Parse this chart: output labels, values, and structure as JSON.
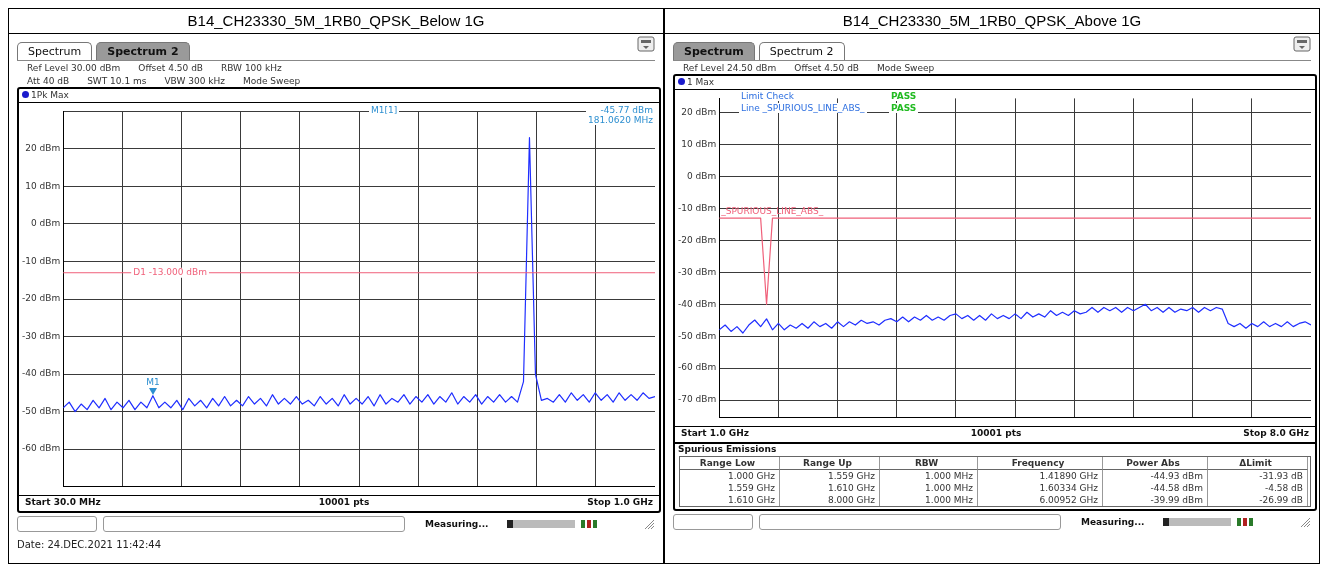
{
  "chart_data": [
    {
      "type": "line",
      "title": "B14_CH23330_5M_1RB0_QPSK_Below 1G",
      "annotations": [
        "Spectrum",
        "Spectrum 2",
        "Ref Level 30.00 dBm",
        "Offset 4.50 dB",
        "RBW 100 kHz",
        "Att 40 dB",
        "SWT 10.1 ms",
        "VBW 300 kHz",
        "Mode Sweep",
        "1Pk Max",
        "M1[1]",
        "-45.77 dBm",
        "181.0620 MHz",
        {
          "text": "M1",
          "y": -45.77
        },
        "Start 30.0 MHz",
        "10001 pts",
        "Stop 1.0 GHz",
        "Measuring...",
        "Date: 24.DEC.2021 11:42:44"
      ],
      "categories": [
        null,
        null,
        null,
        null,
        null,
        null,
        null,
        null,
        null,
        null,
        null,
        null,
        null,
        null,
        null,
        null,
        null,
        null,
        null,
        null,
        null,
        null,
        null,
        null,
        null,
        null,
        null,
        null,
        null,
        null,
        null,
        null,
        null,
        null,
        null,
        null,
        null,
        null,
        null,
        null,
        null,
        null,
        null,
        null,
        null,
        null,
        null,
        null,
        null,
        null,
        null,
        null,
        null,
        null,
        null,
        null,
        null,
        null,
        null,
        null,
        null,
        null,
        null,
        null,
        null,
        null,
        null,
        null,
        null,
        null,
        null,
        null,
        null,
        null,
        null,
        null,
        null,
        null,
        null,
        null,
        null,
        null,
        null,
        null,
        null,
        null,
        null,
        null,
        null,
        null,
        null,
        null,
        null,
        null,
        null,
        null,
        null,
        null,
        null,
        null
      ],
      "series": [
        {
          "color": "#1f2eff",
          "values": [
            -49,
            -47.5,
            -50,
            -48,
            -49.5,
            -47,
            -49,
            -46.5,
            -49.5,
            -47.5,
            -49,
            -47,
            -49.5,
            -47.5,
            -49,
            -45.77,
            -49,
            -47.5,
            -49,
            -47,
            -49.5,
            -46.5,
            -48.5,
            -47,
            -49,
            -46.5,
            -48.5,
            -46,
            -48.5,
            -47,
            -48.5,
            -46,
            -48,
            -46.5,
            -48.5,
            -45.5,
            -48,
            -46.5,
            -48,
            -46,
            -48,
            -47,
            -48.5,
            -46,
            -48,
            -46.5,
            -48.5,
            -45.5,
            -48,
            -46.5,
            -48,
            -46,
            -48.5,
            -45.5,
            -48,
            -46.5,
            -47.5,
            -45.5,
            -48,
            -46,
            -47.5,
            -45.5,
            -48,
            -46,
            -47.5,
            -45,
            -48,
            -46,
            -47.5,
            -45.5,
            -48,
            -46,
            -47.5,
            -45.5,
            -47.5,
            -46,
            -47.5,
            -42,
            23,
            -40,
            -47,
            -46.5,
            -47.5,
            -45.5,
            -47.5,
            -45,
            -47,
            -45.5,
            -47.5,
            -45,
            -47,
            -45.5,
            -47.5,
            -45,
            -47,
            -45.5,
            -47,
            -45,
            -46.5,
            -46
          ]
        }
      ],
      "ylim": [
        -70,
        30
      ],
      "yticks": [
        {
          "value": -70,
          "label": null
        },
        {
          "value": -60,
          "label": "-60 dBm"
        },
        {
          "value": -50,
          "label": "-50 dBm"
        },
        {
          "value": -40,
          "label": "-40 dBm"
        },
        {
          "value": -30,
          "label": "-30 dBm"
        },
        {
          "value": -20,
          "label": "-20 dBm"
        },
        {
          "value": -10,
          "label": "-10 dBm"
        },
        {
          "value": 0,
          "label": "0 dBm"
        },
        {
          "value": 10,
          "label": "10 dBm"
        },
        {
          "value": 20,
          "label": "20 dBm"
        },
        {
          "value": 30,
          "label": null
        }
      ],
      "grid": true,
      "tick_labels": "y",
      "ref_lines": [
        {
          "axis": "y",
          "value": -13,
          "label": "D1 -13.000 dBm",
          "color": "#f0607a"
        }
      ]
    },
    {
      "type": "line",
      "title": "B14_CH23330_5M_1RB0_QPSK_Above 1G",
      "annotations": [
        "Spectrum",
        "Spectrum 2",
        "Ref Level 24.50 dBm",
        "Offset 4.50 dB",
        "Mode Sweep",
        "1 Max",
        "Limit Check",
        "PASS",
        "Line _SPURIOUS_LINE_ABS_",
        "PASS",
        "Start 1.0 GHz",
        "10001 pts",
        "Stop 8.0 GHz",
        "Spurious Emissions",
        "Range Low",
        "Range Up",
        "RBW",
        "Frequency",
        "Power Abs",
        "ΔLimit",
        "1.000 GHz",
        "1.559 GHz",
        "1.000 MHz",
        "1.41890 GHz",
        "-44.93 dBm",
        "-31.93 dB",
        "1.559 GHz",
        "1.610 GHz",
        "1.000 MHz",
        "1.60334 GHz",
        "-44.58 dBm",
        "-4.58 dB",
        "1.610 GHz",
        "8.000 GHz",
        "1.000 MHz",
        "6.00952 GHz",
        "-39.99 dBm",
        "-26.99 dB",
        "Measuring..."
      ],
      "categories": [
        null,
        null,
        null,
        null,
        null,
        null,
        null,
        null,
        null,
        null,
        null,
        null,
        null,
        null,
        null,
        null,
        null,
        null,
        null,
        null,
        null,
        null,
        null,
        null,
        null,
        null,
        null,
        null,
        null,
        null,
        null,
        null,
        null,
        null,
        null,
        null,
        null,
        null,
        null,
        null,
        null,
        null,
        null,
        null,
        null,
        null,
        null,
        null,
        null,
        null,
        null,
        null,
        null,
        null,
        null,
        null,
        null,
        null,
        null,
        null,
        null,
        null,
        null,
        null,
        null,
        null,
        null,
        null,
        null,
        null,
        null,
        null,
        null,
        null,
        null,
        null,
        null,
        null,
        null,
        null,
        null,
        null,
        null,
        null,
        null,
        null,
        null,
        null,
        null,
        null,
        null,
        null,
        null,
        null,
        null,
        null,
        null,
        null,
        null,
        null,
        null
      ],
      "series": [
        {
          "color": "#1f2eff",
          "values": [
            -48,
            -46.5,
            -48.5,
            -47,
            -49,
            -46.5,
            -44.93,
            -47,
            -44.58,
            -48,
            -46,
            -48,
            -46.5,
            -47.5,
            -46,
            -47.5,
            -45.5,
            -47,
            -46,
            -47.5,
            -45.5,
            -47,
            -45.5,
            -46.5,
            -45,
            -46,
            -45.5,
            -46.5,
            -45,
            -44.5,
            -45.5,
            -44,
            -45.5,
            -44,
            -45,
            -43.5,
            -45,
            -44,
            -45,
            -43.5,
            -43,
            -44.5,
            -43.5,
            -45,
            -43.5,
            -45,
            -43,
            -44.5,
            -43.5,
            -44.5,
            -43,
            -44.5,
            -42.5,
            -44,
            -43,
            -44,
            -42,
            -43.5,
            -42.5,
            -43.5,
            -42,
            -43,
            -42.5,
            -41,
            -42.5,
            -41,
            -42,
            -41,
            -42.5,
            -41,
            -42,
            -41,
            -39.99,
            -42,
            -41,
            -42.5,
            -41,
            -42.5,
            -41.5,
            -42,
            -41,
            -42.5,
            -41,
            -42,
            -41,
            -41.5,
            -46,
            -47,
            -46,
            -47.5,
            -46,
            -47,
            -45.5,
            -47,
            -46,
            -47,
            -45.5,
            -47,
            -46,
            -45.5,
            -46.5
          ]
        },
        {
          "name": "_SPURIOUS_LINE_ABS_",
          "color": "#f0607a",
          "values": [
            -13,
            -13,
            -13,
            -13,
            -13,
            -13,
            -13,
            -13,
            -40,
            -13,
            -13,
            -13,
            -13,
            -13,
            -13,
            -13,
            -13,
            -13,
            -13,
            -13,
            -13,
            -13,
            -13,
            -13,
            -13,
            -13,
            -13,
            -13,
            -13,
            -13,
            -13,
            -13,
            -13,
            -13,
            -13,
            -13,
            -13,
            -13,
            -13,
            -13,
            -13,
            -13,
            -13,
            -13,
            -13,
            -13,
            -13,
            -13,
            -13,
            -13,
            -13,
            -13,
            -13,
            -13,
            -13,
            -13,
            -13,
            -13,
            -13,
            -13,
            -13,
            -13,
            -13,
            -13,
            -13,
            -13,
            -13,
            -13,
            -13,
            -13,
            -13,
            -13,
            -13,
            -13,
            -13,
            -13,
            -13,
            -13,
            -13,
            -13,
            -13,
            -13,
            -13,
            -13,
            -13,
            -13,
            -13,
            -13,
            -13,
            -13,
            -13,
            -13,
            -13,
            -13,
            -13,
            -13,
            -13,
            -13,
            -13,
            -13,
            -13
          ]
        }
      ],
      "ylim": [
        -75.5,
        24.5
      ],
      "yticks": [
        {
          "value": -70,
          "label": "-70 dBm"
        },
        {
          "value": -60,
          "label": "-60 dBm"
        },
        {
          "value": -50,
          "label": "-50 dBm"
        },
        {
          "value": -40,
          "label": "-40 dBm"
        },
        {
          "value": -30,
          "label": "-30 dBm"
        },
        {
          "value": -20,
          "label": "-20 dBm"
        },
        {
          "value": -10,
          "label": "-10 dBm"
        },
        {
          "value": 0,
          "label": "0 dBm"
        },
        {
          "value": 10,
          "label": "10 dBm"
        },
        {
          "value": 20,
          "label": "20 dBm"
        }
      ],
      "grid": true,
      "tick_labels": "y"
    }
  ]
}
